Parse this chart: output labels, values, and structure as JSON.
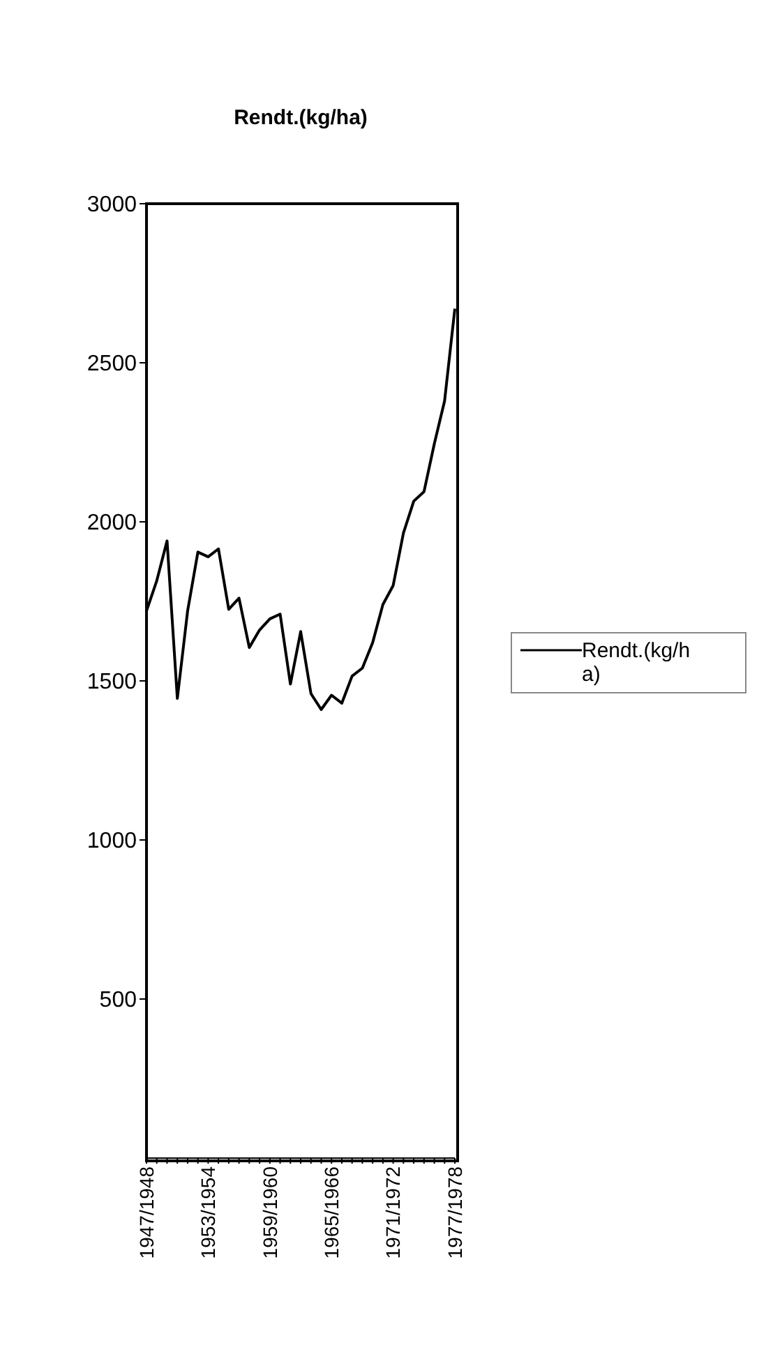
{
  "chart_data": {
    "type": "line",
    "title": "Rendt.(kg/ha)",
    "categories": [
      "1947/1948",
      null,
      null,
      null,
      null,
      null,
      "1953/1954",
      null,
      null,
      null,
      null,
      null,
      "1959/1960",
      null,
      null,
      null,
      null,
      null,
      "1965/1966",
      null,
      null,
      null,
      null,
      null,
      "1971/1972",
      null,
      null,
      null,
      null,
      null,
      "1977/1978"
    ],
    "series": [
      {
        "name": "Rendt.(kg/ha)",
        "color": "#000000",
        "values": [
          1720,
          1815,
          1940,
          1445,
          1720,
          1905,
          1890,
          1915,
          1725,
          1760,
          1605,
          1660,
          1695,
          1710,
          1490,
          1655,
          1460,
          1410,
          1455,
          1430,
          1515,
          1540,
          1620,
          1740,
          1800,
          1965,
          2065,
          2095,
          2245,
          2380,
          2670
        ]
      }
    ],
    "ylim": [
      0,
      3000
    ],
    "yticks": [
      500,
      1000,
      1500,
      2000,
      2500,
      3000
    ],
    "grid": false,
    "legend": "right",
    "marker": "none",
    "line_style": "solid"
  }
}
